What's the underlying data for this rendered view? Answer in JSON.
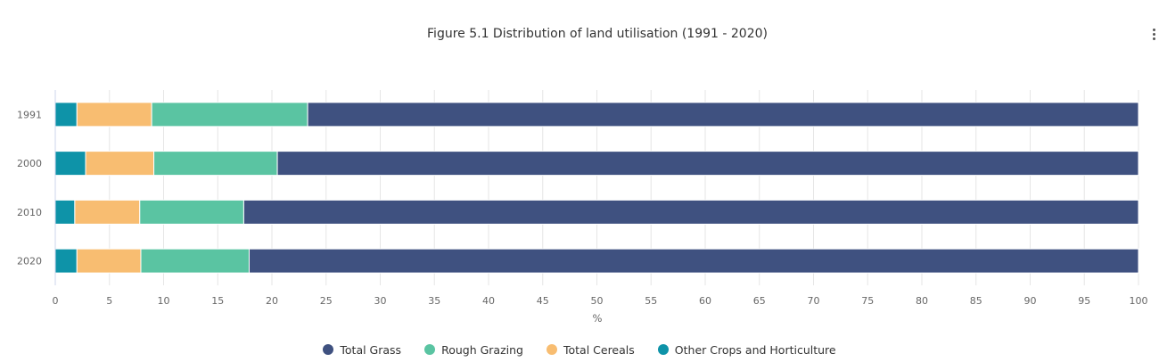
{
  "chart_data": {
    "type": "bar",
    "orientation": "horizontal",
    "stacked": true,
    "title": "Figure 5.1 Distribution of land utilisation (1991 - 2020)",
    "xlabel": "%",
    "ylabel": "",
    "xlim": [
      0,
      100
    ],
    "xticks": [
      0,
      5,
      10,
      15,
      20,
      25,
      30,
      35,
      40,
      45,
      50,
      55,
      60,
      65,
      70,
      75,
      80,
      85,
      90,
      95,
      100
    ],
    "grid": true,
    "legend_position": "bottom-center",
    "categories": [
      "1991",
      "2000",
      "2010",
      "2020"
    ],
    "series": [
      {
        "name": "Other Crops and Horticulture",
        "color": "#0e93a8",
        "values": [
          2.0,
          2.8,
          1.8,
          2.0
        ]
      },
      {
        "name": "Total Cereals",
        "color": "#f8bd71",
        "values": [
          6.9,
          6.3,
          6.0,
          5.9
        ]
      },
      {
        "name": "Rough Grazing",
        "color": "#5ac4a2",
        "values": [
          14.4,
          11.4,
          9.6,
          10.0
        ]
      },
      {
        "name": "Total Grass",
        "color": "#3f5180",
        "values": [
          76.7,
          79.5,
          82.6,
          82.1
        ]
      }
    ],
    "legend_order": [
      "Total Grass",
      "Rough Grazing",
      "Total Cereals",
      "Other Crops and Horticulture"
    ]
  },
  "menu": {
    "icon": "menu-kebab-icon"
  }
}
